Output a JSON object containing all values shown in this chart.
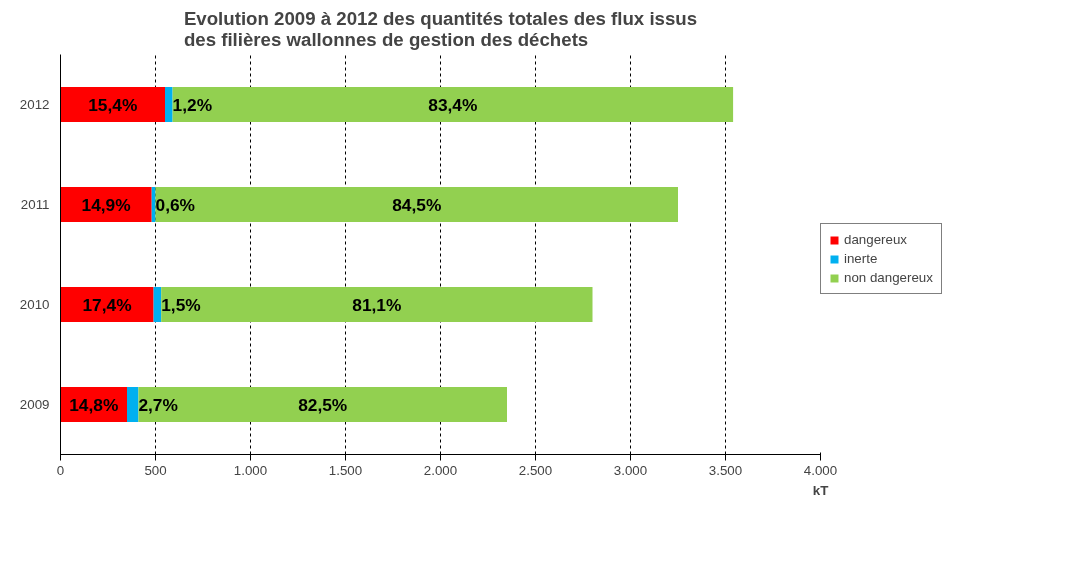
{
  "chart_data": {
    "type": "bar",
    "orientation": "horizontal",
    "stacked": true,
    "title": "Evolution 2009 à 2012 des quantités totales des flux issus\ndes filières wallonnes de gestion des déchets",
    "xlabel": "kT",
    "categories": [
      "2012",
      "2011",
      "2010",
      "2009"
    ],
    "series": [
      {
        "name": "dangereux",
        "color": "#ff0000",
        "values": [
          550,
          480,
          490,
          350
        ]
      },
      {
        "name": "inerte",
        "color": "#00b0f0",
        "values": [
          40,
          20,
          40,
          60
        ]
      },
      {
        "name": "non dangereux",
        "color": "#92d050",
        "values": [
          2950,
          2750,
          2270,
          1940
        ]
      }
    ],
    "annotations": [
      "15,4%",
      "1,2%",
      "83,4%",
      "14,9%",
      "0,6%",
      "84,5%",
      "17,4%",
      "1,5%",
      "81,1%",
      "14,8%",
      "2,7%",
      "82,5%"
    ],
    "xlim": [
      0,
      4000
    ],
    "xticks": [
      0,
      {
        "value": 500,
        "label": "500"
      },
      {
        "value": 1000,
        "label": "1.000"
      },
      {
        "value": 1500,
        "label": "1.500"
      },
      {
        "value": 2000,
        "label": "2.000"
      },
      {
        "value": 2500,
        "label": "2.500"
      },
      {
        "value": 3000,
        "label": "3.000"
      },
      {
        "value": 3500,
        "label": "3.500"
      },
      {
        "value": 4000,
        "label": "4.000"
      }
    ],
    "grid": "x",
    "legend": "right"
  }
}
